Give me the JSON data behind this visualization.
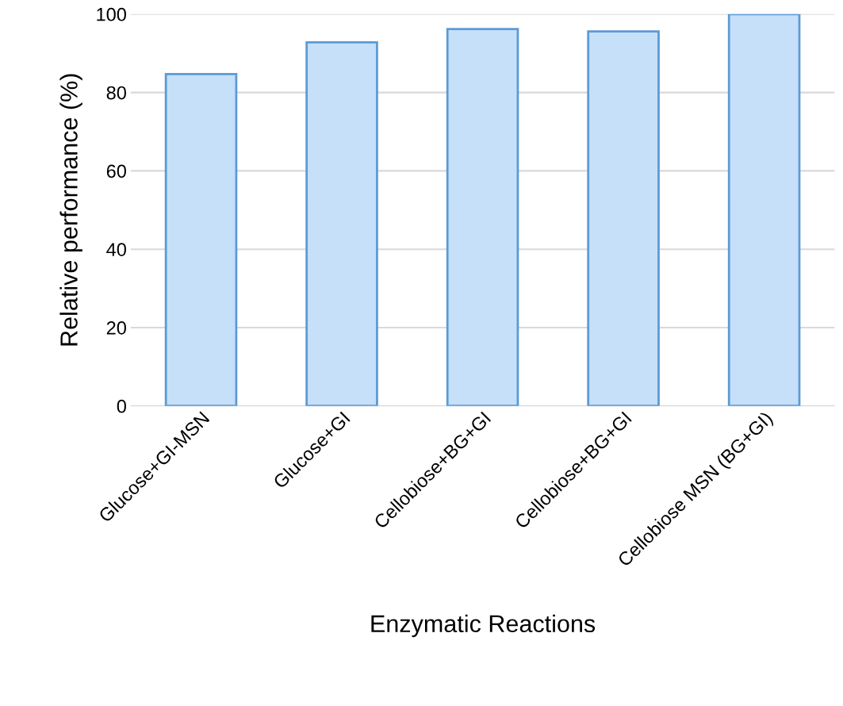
{
  "chart_data": {
    "type": "bar",
    "xlabel": "Enzymatic Reactions",
    "ylabel": "Relative performance (%)",
    "categories": [
      "Glucose+GI-MSN",
      "Glucose+GI",
      "Cellobiose+BG+GI",
      "Cellobiose+BG+GI",
      "Cellobiose MSN (BG+GI)"
    ],
    "values": [
      84.7,
      92.8,
      96.2,
      95.6,
      100
    ],
    "color": "#c6e0fa",
    "ylim": [
      0,
      100
    ],
    "yticks": [
      0,
      20,
      40,
      60,
      80,
      100
    ],
    "grid": "y",
    "legend": false
  }
}
